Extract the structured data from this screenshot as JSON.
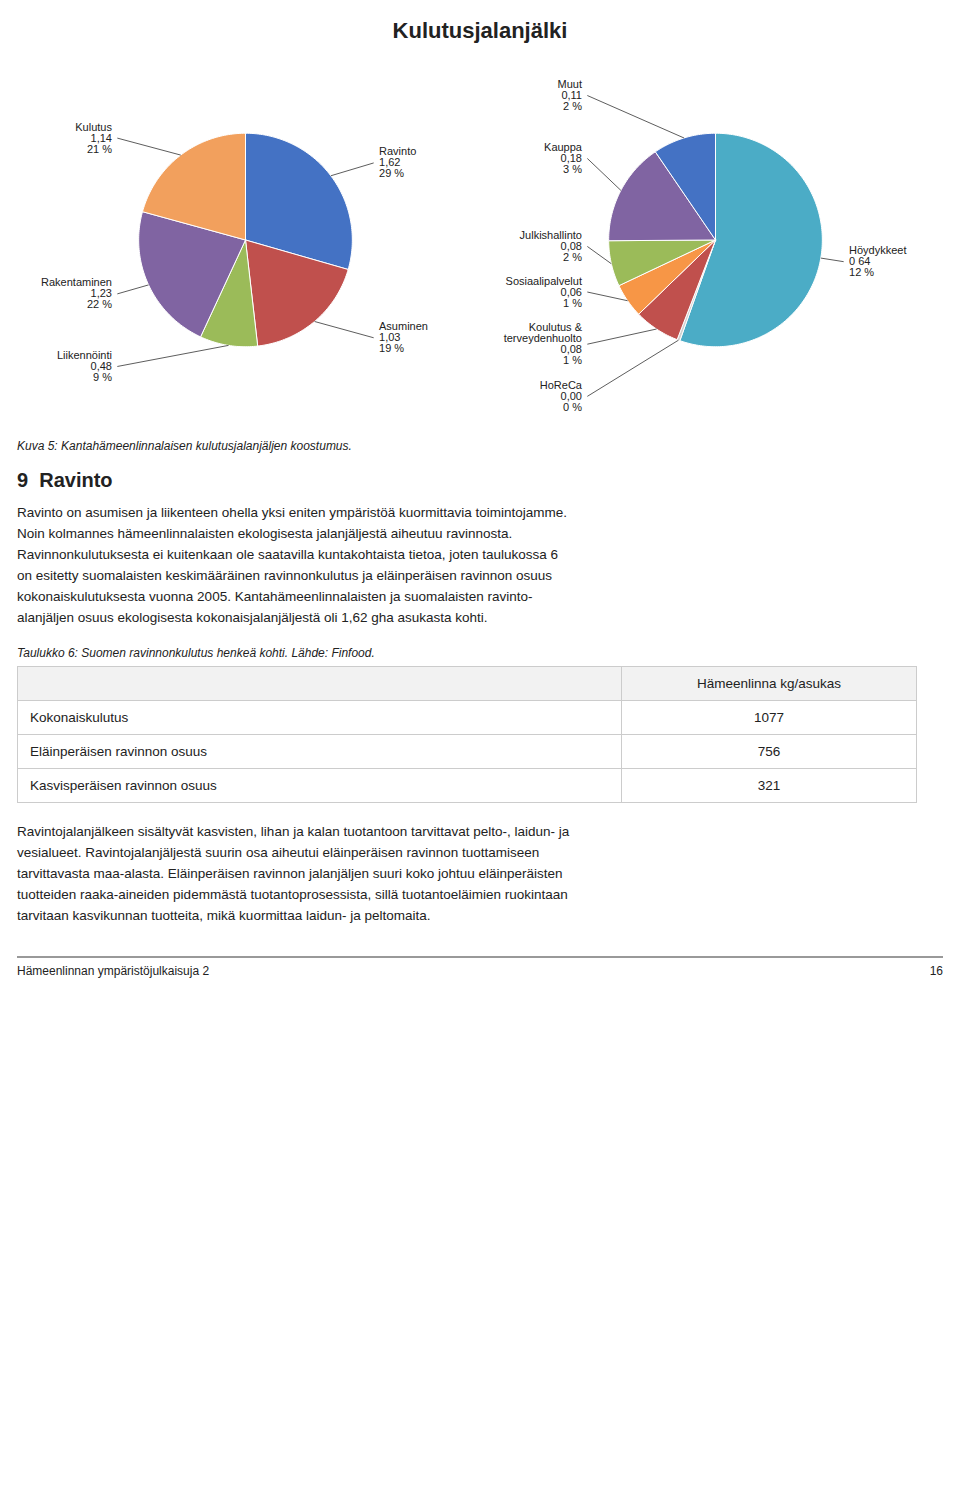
{
  "chart_data": [
    {
      "type": "pie",
      "title": "Kulutusjalanjälki",
      "categories": [
        "Ravinto",
        "Asuminen",
        "Liikennöinti",
        "Rakentaminen",
        "Kulutus"
      ],
      "values": [
        1.62,
        1.03,
        0.48,
        1.23,
        1.14
      ],
      "value_labels": [
        "1,62",
        "1,03",
        "0,48",
        "1,23",
        "1,14"
      ],
      "percent_labels": [
        "29 %",
        "19 %",
        "9 %",
        "22 %",
        "21 %"
      ],
      "colors": [
        "#4472C4",
        "#C0504D",
        "#9BBB59",
        "#8064A2",
        "#F2A05D"
      ],
      "data_labels": true
    },
    {
      "type": "pie",
      "categories": [
        "Höydykkeet",
        "HoReCa",
        "Koulutus & terveydenhuolto",
        "Sosiaalipalvelut",
        "Julkishallinto",
        "Kauppa",
        "Muut"
      ],
      "values": [
        0.64,
        0.005,
        0.08,
        0.06,
        0.08,
        0.18,
        0.11
      ],
      "value_labels": [
        "0 64",
        "0,00",
        "0,08",
        "0,06",
        "0,08",
        "0,18",
        "0,11"
      ],
      "percent_labels": [
        "12 %",
        "0 %",
        "1 %",
        "1 %",
        "2 %",
        "3 %",
        "2 %"
      ],
      "colors": [
        "#4BACC6",
        "#D0D0D0",
        "#C0504D",
        "#F79646",
        "#9BBB59",
        "#8064A2",
        "#4472C4"
      ],
      "data_labels": true
    }
  ],
  "caption": "Kuva 5: Kantahämeenlinnalaisen kulutusjalanjäljen koostumus.",
  "section_title": "9  Ravinto",
  "paragraph1": [
    "Ravinto on asumisen ja liikenteen ohella yksi eniten ympäristöä kuormittavia toimintojamme.",
    "Noin kolmannes hämeenlinnalaisten ekologisesta jalanjäljestä aiheutuu ravinnosta.",
    "Ravinnonkulutuksesta ei kuitenkaan ole saatavilla kuntakohtaista tietoa, joten taulukossa 6",
    "on esitetty suomalaisten keskimääräinen ravinnonkulutus ja eläinperäisen ravinnon osuus",
    "kokonaiskulutuksesta vuonna 2005. Kantahämeenlinnalaisten ja suomalaisten ravinto-",
    "alanjäljen osuus ekologisesta kokonaisjalanjäljestä oli 1,62 gha asukasta kohti."
  ],
  "table_caption": "Taulukko 6: Suomen ravinnonkulutus henkeä kohti. Lähde: Finfood.",
  "table_header": "Hämeenlinna kg/asukas",
  "table_rows": [
    [
      "Kokonaiskulutus",
      "1077"
    ],
    [
      "Eläinperäisen ravinnon osuus",
      "756"
    ],
    [
      "Kasvisperäisen ravinnon osuus",
      "321"
    ]
  ],
  "paragraph2": [
    "Ravintojalanjälkeen sisältyvät kasvisten, lihan ja kalan tuotantoon tarvittavat pelto-, laidun- ja",
    "vesialueet. Ravintojalanjäljestä suurin osa aiheutui eläinperäisen ravinnon tuottamiseen",
    "tarvittavasta maa-alasta. Eläinperäisen ravinnon jalanjäljen suuri koko johtuu eläinperäisten",
    "tuotteiden raaka-aineiden pidemmästä tuotantoprosessista, sillä tuotantoeläimien ruokintaan",
    "tarvitaan kasvikunnan tuotteita, mikä kuormittaa laidun- ja peltomaita."
  ],
  "footer_left": "Hämeenlinnan ympäristöjulkaisuja 2",
  "footer_right": "16"
}
